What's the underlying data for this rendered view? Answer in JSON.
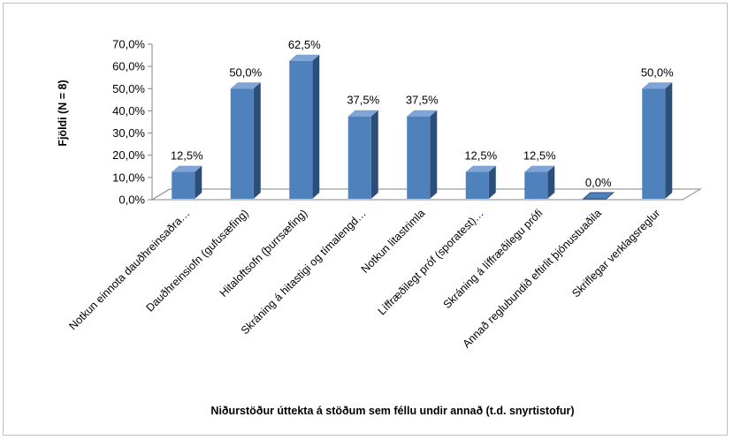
{
  "chart_data": {
    "type": "bar",
    "title": "",
    "xlabel": "Niðurstöður úttekta á stöðum sem féllu undir annað (t.d. snyrtistofur)",
    "ylabel": "Fjöldi (N = 8)",
    "ylim": [
      0,
      70
    ],
    "yticks": [
      "0,0%",
      "10,0%",
      "20,0%",
      "30,0%",
      "40,0%",
      "50,0%",
      "60,0%",
      "70,0%"
    ],
    "categories": [
      "Notkun einnota dauðhreinsaðra…",
      "Dauðhreinsiofn (gufusæfing)",
      "Hitaloftsofn (þurrsæfing)",
      "Skráning á hitastigi og tímalengd…",
      "Notkun litastrimla",
      "Líffræðilegt próf (sporatest)…",
      "Skráning á líffræðilegu prófi",
      "Annað reglubundið eftirlit þjónustuaðila",
      "Skriflegar verklagsreglur"
    ],
    "values": [
      12.5,
      50.0,
      62.5,
      37.5,
      37.5,
      12.5,
      12.5,
      0.0,
      50.0
    ],
    "data_labels": [
      "12,5%",
      "50,0%",
      "62,5%",
      "37,5%",
      "37,5%",
      "12,5%",
      "12,5%",
      "0,0%",
      "50,0%"
    ],
    "colors": {
      "front": "#4f81bd",
      "side": "#2c4f7a",
      "top": "#7fa5d6"
    },
    "grid": false,
    "legend": "none"
  }
}
